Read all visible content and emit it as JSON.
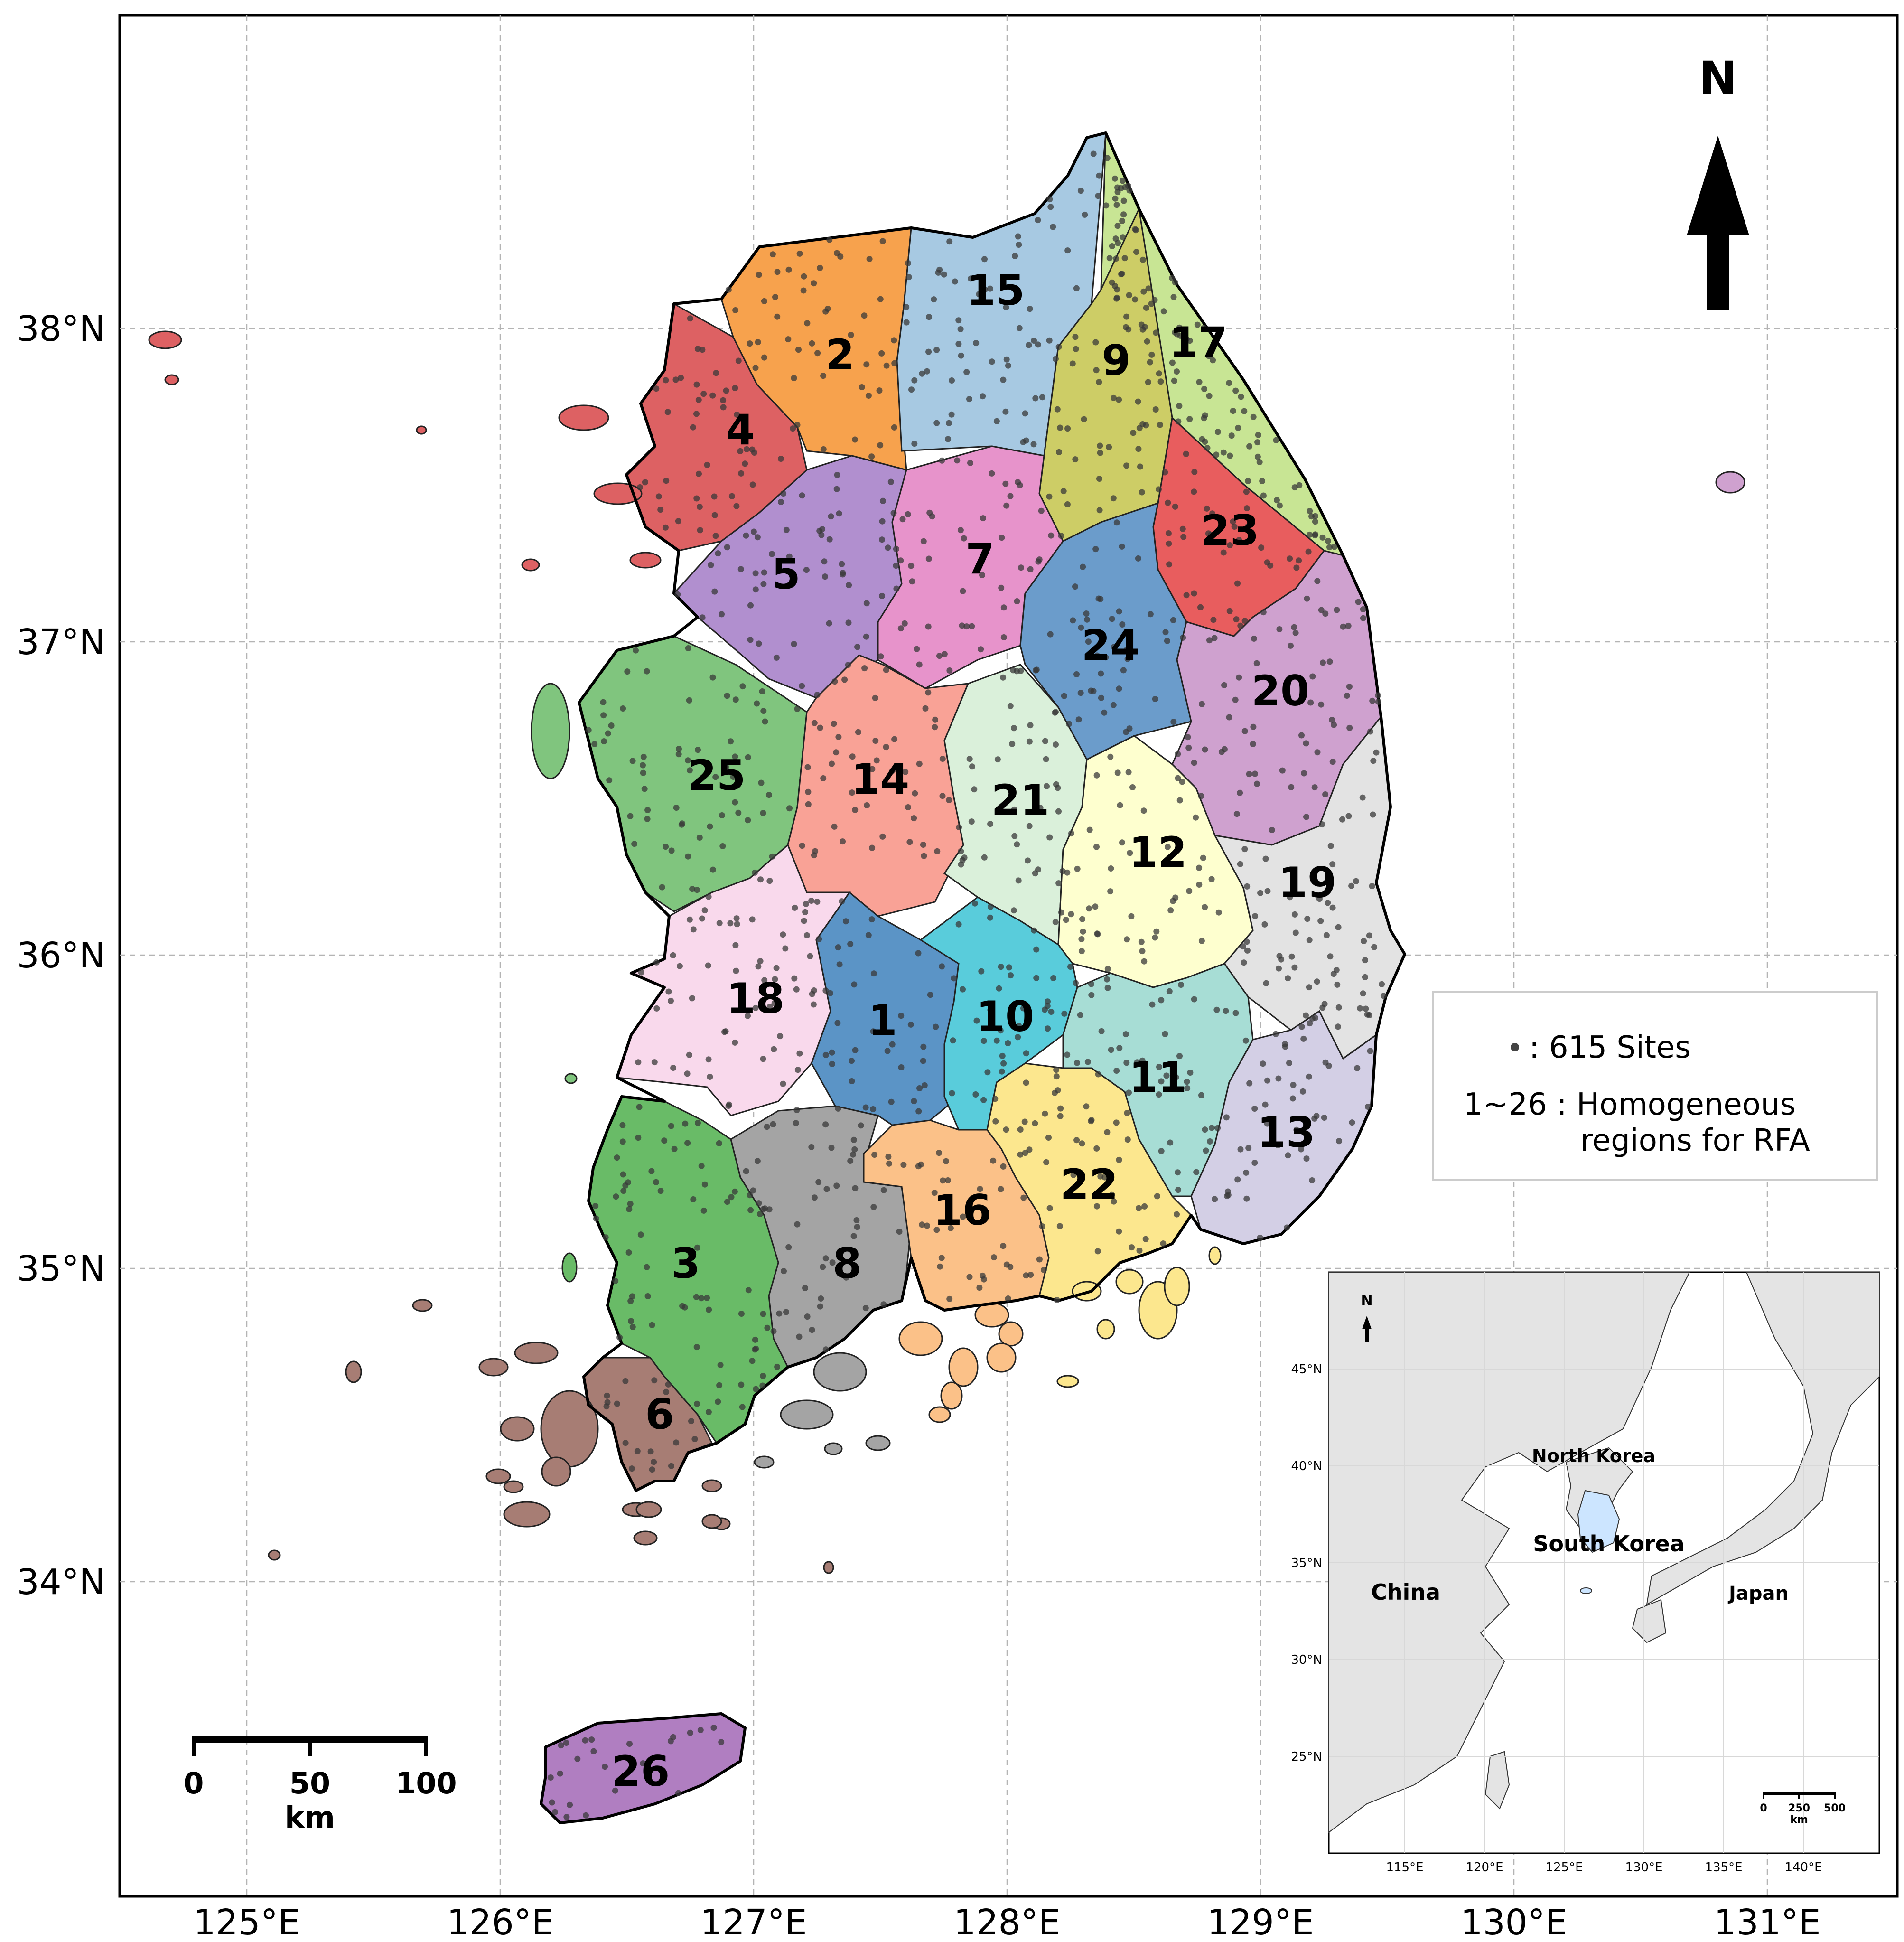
{
  "map": {
    "x_ticks": [
      "125°E",
      "126°E",
      "127°E",
      "128°E",
      "129°E",
      "130°E",
      "131°E"
    ],
    "y_ticks": [
      "38°N",
      "37°N",
      "36°N",
      "35°N",
      "34°N"
    ],
    "north_label": "N"
  },
  "regions": [
    {
      "id": "1",
      "label": "1",
      "color": "#5b94c6"
    },
    {
      "id": "2",
      "label": "2",
      "color": "#f7a24d"
    },
    {
      "id": "3",
      "label": "3",
      "color": "#69bb67"
    },
    {
      "id": "4",
      "label": "4",
      "color": "#dd6163"
    },
    {
      "id": "5",
      "label": "5",
      "color": "#b18fcf"
    },
    {
      "id": "6",
      "label": "6",
      "color": "#a77d74"
    },
    {
      "id": "7",
      "label": "7",
      "color": "#e793cb"
    },
    {
      "id": "8",
      "label": "8",
      "color": "#a4a4a4"
    },
    {
      "id": "9",
      "label": "9",
      "color": "#cdcd66"
    },
    {
      "id": "10",
      "label": "10",
      "color": "#59ccdb"
    },
    {
      "id": "11",
      "label": "11",
      "color": "#a7ddd5"
    },
    {
      "id": "12",
      "label": "12",
      "color": "#feffcf"
    },
    {
      "id": "13",
      "label": "13",
      "color": "#d3cfe5"
    },
    {
      "id": "14",
      "label": "14",
      "color": "#f9a296"
    },
    {
      "id": "15",
      "label": "15",
      "color": "#a7c9e2"
    },
    {
      "id": "16",
      "label": "16",
      "color": "#fbc188"
    },
    {
      "id": "17",
      "label": "17",
      "color": "#c8e594"
    },
    {
      "id": "18",
      "label": "18",
      "color": "#f9d9ec"
    },
    {
      "id": "19",
      "label": "19",
      "color": "#e3e3e3"
    },
    {
      "id": "20",
      "label": "20",
      "color": "#cfa1cf"
    },
    {
      "id": "21",
      "label": "21",
      "color": "#daf0da"
    },
    {
      "id": "22",
      "label": "22",
      "color": "#fce78e"
    },
    {
      "id": "23",
      "label": "23",
      "color": "#e85d5e"
    },
    {
      "id": "24",
      "label": "24",
      "color": "#6b9ccb"
    },
    {
      "id": "25",
      "label": "25",
      "color": "#80c57e"
    },
    {
      "id": "26",
      "label": "26",
      "color": "#b07ec1"
    }
  ],
  "legend": {
    "sites_text": ": 615 Sites",
    "range_text": "1~26 : Homogeneous",
    "range_text2": "regions for RFA"
  },
  "scalebar": {
    "ticks": [
      "0",
      "50",
      "100"
    ],
    "unit": "km"
  },
  "inset": {
    "north_label": "N",
    "lat_ticks": [
      "45°N",
      "40°N",
      "35°N",
      "30°N",
      "25°N"
    ],
    "lon_ticks": [
      "115°E",
      "120°E",
      "125°E",
      "130°E",
      "135°E",
      "140°E"
    ],
    "countries": [
      {
        "name": "North Korea",
        "role": "north-korea"
      },
      {
        "name": "South Korea",
        "role": "south-korea"
      },
      {
        "name": "China",
        "role": "china"
      },
      {
        "name": "Japan",
        "role": "japan"
      }
    ],
    "scalebar": {
      "ticks": [
        "0",
        "250",
        "500"
      ],
      "unit": "km"
    },
    "colors": {
      "land": "#e4e4e4",
      "highlight": "#cce5ff",
      "sea": "#ffffff"
    }
  }
}
